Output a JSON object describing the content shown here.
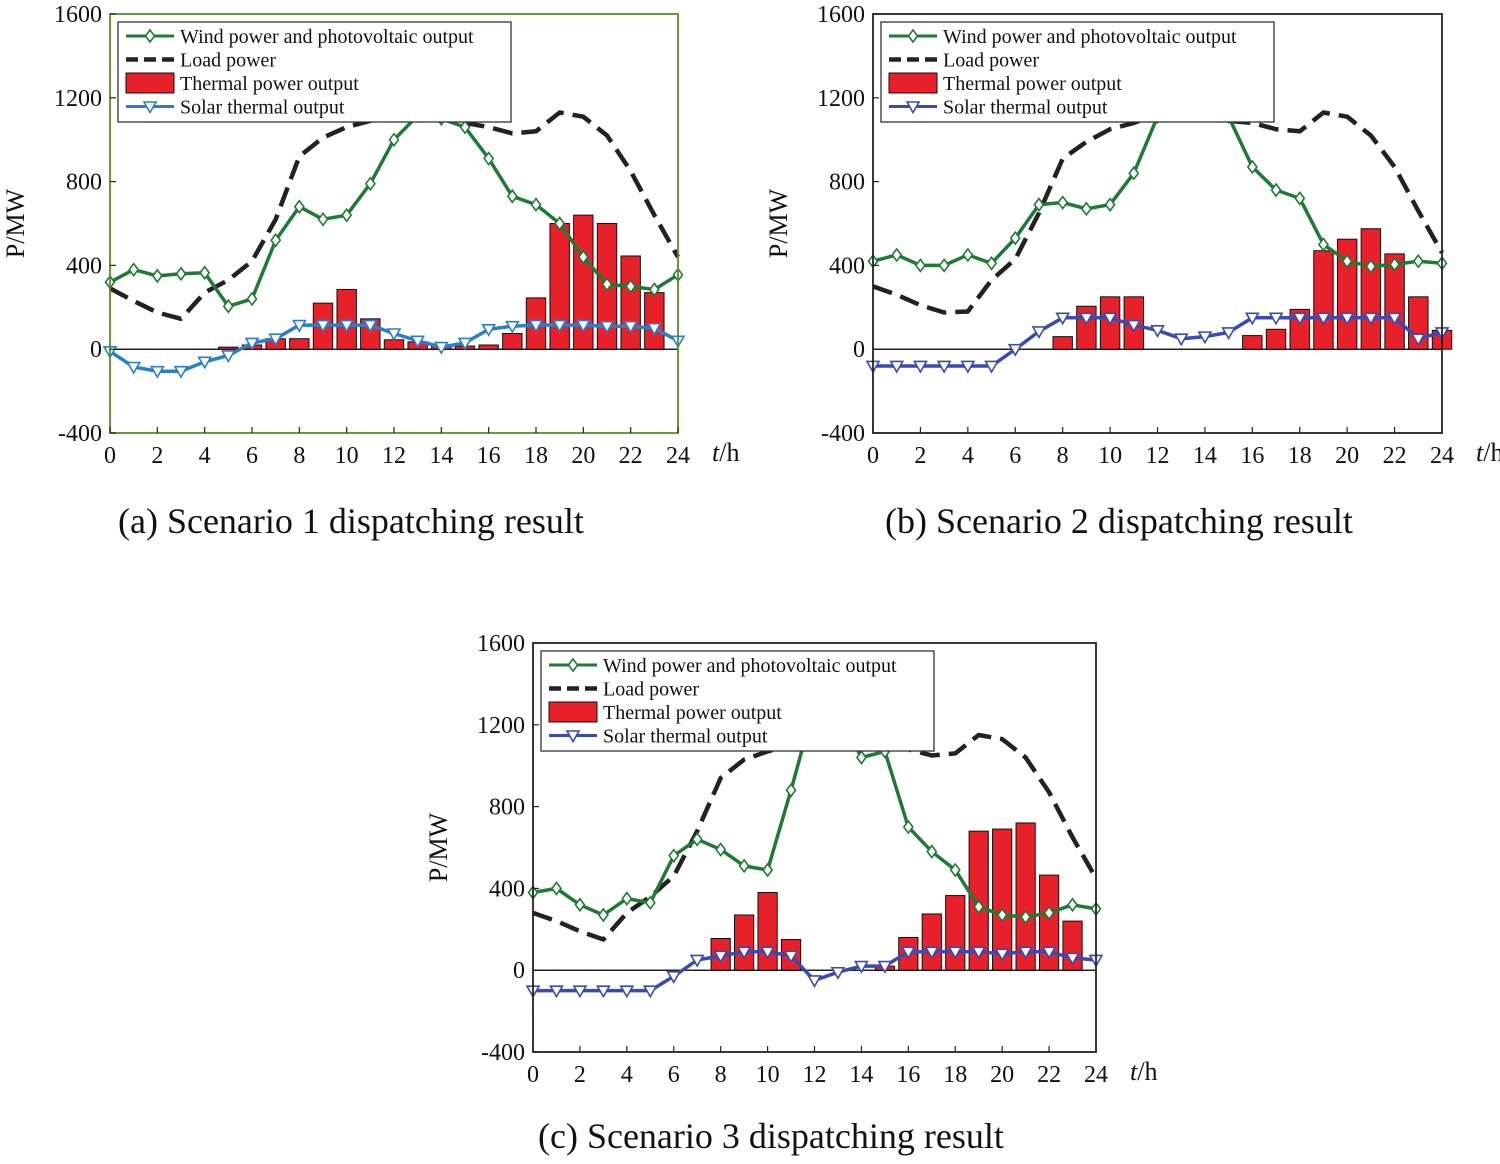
{
  "chart_data": [
    {
      "type": "line",
      "caption": "(a) Scenario 1 dispatching result",
      "ylabel": "P/MW",
      "xlabel_italic": "t",
      "xlabel_unit": "/h",
      "ylim": [
        -400,
        1600
      ],
      "xlim": [
        0,
        24
      ],
      "yticks": [
        "-400",
        "0",
        "400",
        "800",
        "1200",
        "1600"
      ],
      "xticks": [
        "0",
        "2",
        "4",
        "6",
        "8",
        "10",
        "12",
        "14",
        "16",
        "18",
        "20",
        "22",
        "24"
      ],
      "legend_position": "top-left",
      "legend": [
        "Wind power and photovoltaic output",
        "Load power",
        "Thermal power output",
        "Solar thermal output"
      ],
      "frame_color": "#5a8a28",
      "series": [
        {
          "kind": "bar",
          "color": "#e8202a",
          "x": [
            5,
            6,
            7,
            8,
            9,
            10,
            11,
            12,
            13,
            14,
            15,
            16,
            17,
            18,
            19,
            20,
            21,
            22,
            23
          ],
          "values": [
            10,
            20,
            50,
            50,
            220,
            285,
            145,
            45,
            35,
            20,
            15,
            20,
            75,
            245,
            600,
            640,
            600,
            445,
            270
          ]
        },
        {
          "kind": "line",
          "style": "dash",
          "color": "#222222",
          "x": [
            0,
            1,
            2,
            3,
            4,
            5,
            6,
            7,
            8,
            9,
            10,
            11,
            12,
            13,
            14,
            15,
            16,
            17,
            18,
            19,
            20,
            21,
            22,
            23,
            24
          ],
          "values": [
            290,
            230,
            175,
            145,
            270,
            330,
            420,
            620,
            920,
            1010,
            1060,
            1090,
            1120,
            1150,
            1120,
            1080,
            1060,
            1030,
            1040,
            1130,
            1110,
            1020,
            850,
            640,
            440
          ]
        },
        {
          "kind": "line",
          "style": "solid",
          "marker": "diamond",
          "color": "#1e7a35",
          "x": [
            0,
            1,
            2,
            3,
            4,
            5,
            6,
            7,
            8,
            9,
            10,
            11,
            12,
            13,
            14,
            15,
            16,
            17,
            18,
            19,
            20,
            21,
            22,
            23,
            24
          ],
          "values": [
            320,
            380,
            350,
            360,
            365,
            205,
            240,
            520,
            680,
            620,
            640,
            790,
            1000,
            1115,
            1100,
            1060,
            910,
            730,
            690,
            600,
            440,
            310,
            300,
            285,
            355
          ]
        },
        {
          "kind": "line",
          "style": "solid",
          "marker": "triangle-down",
          "color": "#2a7fc8",
          "x": [
            0,
            1,
            2,
            3,
            4,
            5,
            6,
            7,
            8,
            9,
            10,
            11,
            12,
            13,
            14,
            15,
            16,
            17,
            18,
            19,
            20,
            21,
            22,
            23,
            24
          ],
          "values": [
            -10,
            -85,
            -105,
            -105,
            -60,
            -30,
            30,
            50,
            115,
            115,
            115,
            115,
            75,
            40,
            10,
            30,
            95,
            110,
            115,
            115,
            115,
            110,
            110,
            100,
            40
          ]
        }
      ]
    },
    {
      "type": "line",
      "caption": "(b) Scenario 2 dispatching result",
      "ylabel": "P/MW",
      "xlabel_italic": "t",
      "xlabel_unit": "/h",
      "ylim": [
        -400,
        1600
      ],
      "xlim": [
        0,
        24
      ],
      "yticks": [
        "-400",
        "0",
        "400",
        "800",
        "1200",
        "1600"
      ],
      "xticks": [
        "0",
        "2",
        "4",
        "6",
        "8",
        "10",
        "12",
        "14",
        "16",
        "18",
        "20",
        "22",
        "24"
      ],
      "legend_position": "top-left",
      "legend": [
        "Wind power and photovoltaic output",
        "Load power",
        "Thermal power output",
        "Solar thermal output"
      ],
      "frame_color": "#222222",
      "series": [
        {
          "kind": "bar",
          "color": "#e8202a",
          "x": [
            8,
            9,
            10,
            11,
            16,
            17,
            18,
            19,
            20,
            21,
            22,
            23,
            24
          ],
          "values": [
            60,
            205,
            250,
            250,
            65,
            95,
            190,
            470,
            525,
            575,
            455,
            250,
            90
          ]
        },
        {
          "kind": "line",
          "style": "dash",
          "color": "#222222",
          "x": [
            0,
            1,
            2,
            3,
            4,
            5,
            6,
            7,
            8,
            9,
            10,
            11,
            12,
            13,
            14,
            15,
            16,
            17,
            18,
            19,
            20,
            21,
            22,
            23,
            24
          ],
          "values": [
            300,
            260,
            210,
            175,
            180,
            330,
            430,
            650,
            910,
            990,
            1050,
            1080,
            1120,
            1160,
            1120,
            1090,
            1080,
            1050,
            1040,
            1130,
            1110,
            1020,
            870,
            660,
            460
          ]
        },
        {
          "kind": "line",
          "style": "solid",
          "marker": "diamond",
          "color": "#1e7a35",
          "x": [
            0,
            1,
            2,
            3,
            4,
            5,
            6,
            7,
            8,
            9,
            10,
            11,
            12,
            13,
            14,
            15,
            16,
            17,
            18,
            19,
            20,
            21,
            22,
            23,
            24
          ],
          "values": [
            420,
            450,
            400,
            400,
            450,
            410,
            530,
            690,
            700,
            670,
            690,
            840,
            1110,
            1260,
            1130,
            1110,
            870,
            760,
            720,
            500,
            420,
            395,
            405,
            420,
            410
          ]
        },
        {
          "kind": "line",
          "style": "solid",
          "marker": "triangle-down",
          "color": "#3a4bb0",
          "x": [
            0,
            1,
            2,
            3,
            4,
            5,
            6,
            7,
            8,
            9,
            10,
            11,
            12,
            13,
            14,
            15,
            16,
            17,
            18,
            19,
            20,
            21,
            22,
            23,
            24
          ],
          "values": [
            -80,
            -80,
            -80,
            -80,
            -80,
            -80,
            0,
            85,
            150,
            150,
            150,
            115,
            90,
            50,
            60,
            80,
            150,
            150,
            150,
            150,
            150,
            150,
            150,
            50,
            80
          ]
        }
      ]
    },
    {
      "type": "line",
      "caption": "(c) Scenario 3 dispatching result",
      "ylabel": "P/MW",
      "xlabel_italic": "t",
      "xlabel_unit": "/h",
      "ylim": [
        -400,
        1600
      ],
      "xlim": [
        0,
        24
      ],
      "yticks": [
        "-400",
        "0",
        "400",
        "800",
        "1200",
        "1600"
      ],
      "xticks": [
        "0",
        "2",
        "4",
        "6",
        "8",
        "10",
        "12",
        "14",
        "16",
        "18",
        "20",
        "22",
        "24"
      ],
      "legend_position": "top-left",
      "legend": [
        "Wind power and photovoltaic output",
        "Load power",
        "Thermal power output",
        "Solar thermal output"
      ],
      "frame_color": "#222222",
      "series": [
        {
          "kind": "bar",
          "color": "#e8202a",
          "x": [
            8,
            9,
            10,
            11,
            15,
            16,
            17,
            18,
            19,
            20,
            21,
            22,
            23
          ],
          "values": [
            155,
            270,
            380,
            150,
            20,
            160,
            275,
            365,
            680,
            690,
            720,
            465,
            240
          ]
        },
        {
          "kind": "line",
          "style": "dash",
          "color": "#222222",
          "x": [
            0,
            1,
            2,
            3,
            4,
            5,
            6,
            7,
            8,
            9,
            10,
            11,
            12,
            13,
            14,
            15,
            16,
            17,
            18,
            19,
            20,
            21,
            22,
            23,
            24
          ],
          "values": [
            280,
            240,
            190,
            150,
            280,
            360,
            460,
            680,
            940,
            1030,
            1070,
            1100,
            1140,
            1170,
            1120,
            1090,
            1080,
            1050,
            1060,
            1150,
            1130,
            1040,
            870,
            650,
            450
          ]
        },
        {
          "kind": "line",
          "style": "solid",
          "marker": "diamond",
          "color": "#1e7a35",
          "x": [
            0,
            1,
            2,
            3,
            4,
            5,
            6,
            7,
            8,
            9,
            10,
            11,
            12,
            13,
            14,
            15,
            16,
            17,
            18,
            19,
            20,
            21,
            22,
            23,
            24
          ],
          "values": [
            380,
            400,
            320,
            270,
            350,
            330,
            560,
            640,
            590,
            510,
            490,
            880,
            1300,
            1260,
            1040,
            1070,
            700,
            580,
            490,
            310,
            270,
            260,
            280,
            320,
            300
          ]
        },
        {
          "kind": "line",
          "style": "solid",
          "marker": "triangle-down",
          "color": "#3a4bb0",
          "x": [
            0,
            1,
            2,
            3,
            4,
            5,
            6,
            7,
            8,
            9,
            10,
            11,
            12,
            13,
            14,
            15,
            16,
            17,
            18,
            19,
            20,
            21,
            22,
            23,
            24
          ],
          "values": [
            -100,
            -100,
            -100,
            -100,
            -100,
            -100,
            -30,
            50,
            70,
            90,
            90,
            70,
            -50,
            -10,
            20,
            20,
            90,
            90,
            90,
            90,
            80,
            90,
            90,
            60,
            50
          ]
        }
      ]
    }
  ]
}
